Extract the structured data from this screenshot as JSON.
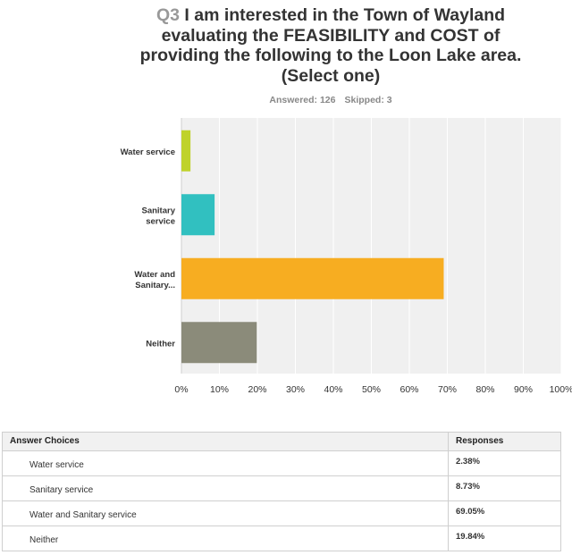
{
  "header": {
    "question_number": "Q3",
    "question_text": "I am interested in the Town of Wayland evaluating the FEASIBILITY and COST of providing the following to the Loon Lake area. (Select one)",
    "answered": "Answered: 126",
    "skipped": "Skipped: 3"
  },
  "chart_data": {
    "type": "bar",
    "orientation": "horizontal",
    "categories": [
      "Water service",
      "Sanitary service",
      "Water and Sanitary...",
      "Neither"
    ],
    "values": [
      2.38,
      8.73,
      69.05,
      19.84
    ],
    "xlim": [
      0,
      100
    ],
    "x_ticks": [
      "0%",
      "10%",
      "20%",
      "30%",
      "40%",
      "50%",
      "60%",
      "70%",
      "80%",
      "90%",
      "100%"
    ],
    "grid": true,
    "colors": [
      "#bfd22b",
      "#31c0c0",
      "#f7ad21",
      "#8b8b7a"
    ],
    "plot_background": "#f0f0f0"
  },
  "table": {
    "headers": [
      "Answer Choices",
      "Responses"
    ],
    "rows": [
      {
        "choice": "Water service",
        "response": "2.38%"
      },
      {
        "choice": "Sanitary service",
        "response": "8.73%"
      },
      {
        "choice": "Water and Sanitary service",
        "response": "69.05%"
      },
      {
        "choice": "Neither",
        "response": "19.84%"
      }
    ]
  }
}
